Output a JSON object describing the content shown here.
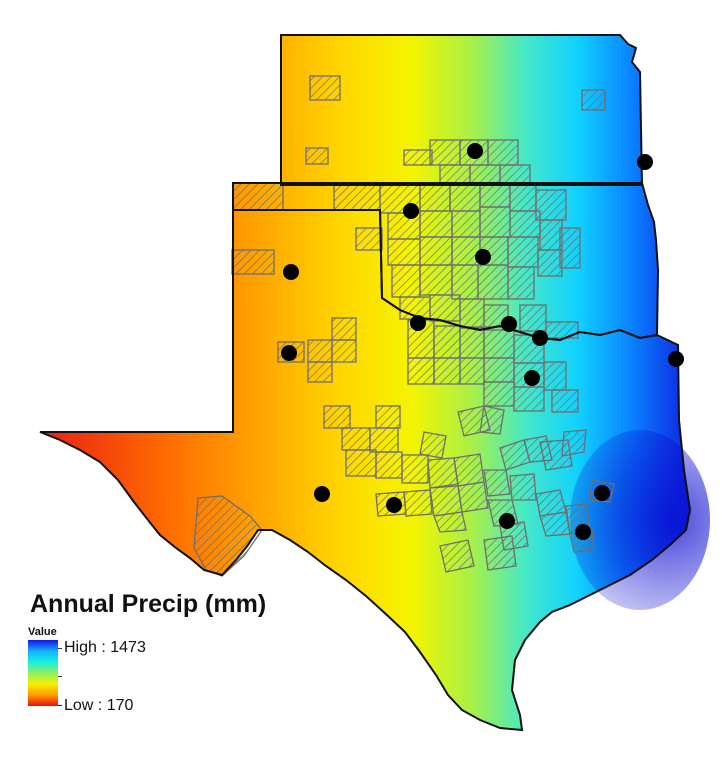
{
  "legend": {
    "title": "Annual Precip (mm)",
    "value_label": "Value",
    "high_label": "High : 1473",
    "low_label": "Low : 170",
    "high_value": 1473,
    "low_value": 170,
    "ramp_colors": [
      "#1414e6",
      "#12b0ff",
      "#18f0e0",
      "#8cf060",
      "#f8f000",
      "#ff9a00",
      "#e81010"
    ]
  },
  "map_style": {
    "boundary_color": "#111111",
    "polygon_stroke": "#6e6e6e",
    "hatch_color": "#6e6e6e",
    "site_marker_color": "#000000"
  },
  "site_count": 17
}
